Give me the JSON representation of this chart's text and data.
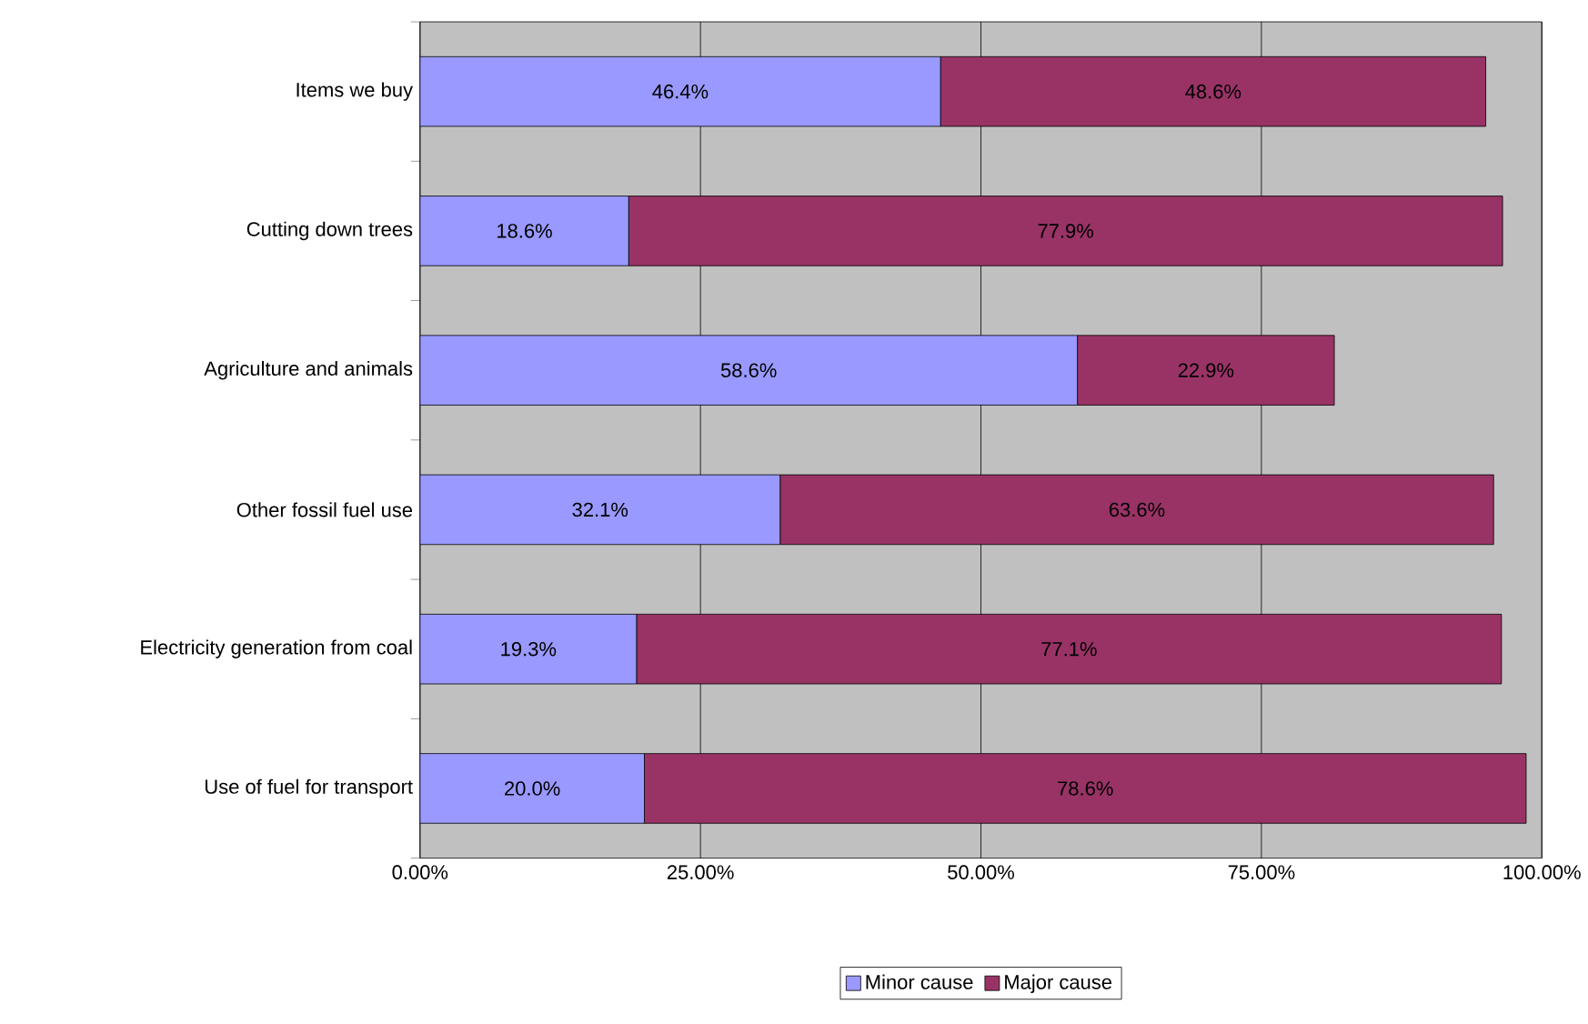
{
  "chart_data": {
    "type": "bar",
    "orientation": "horizontal",
    "stacked": true,
    "categories": [
      "Items we buy",
      "Cutting down trees",
      "Agriculture and animals",
      "Other fossil fuel use",
      "Electricity generation from coal",
      "Use of fuel for transport"
    ],
    "series": [
      {
        "name": "Minor cause",
        "color": "#9999ff",
        "values": [
          46.4,
          18.6,
          58.6,
          32.1,
          19.3,
          20.0
        ],
        "value_labels": [
          "46.4%",
          "18.6%",
          "58.6%",
          "32.1%",
          "19.3%",
          "20.0%"
        ]
      },
      {
        "name": "Major cause",
        "color": "#993366",
        "values": [
          48.6,
          77.9,
          22.9,
          63.6,
          77.1,
          78.6
        ],
        "value_labels": [
          "48.6%",
          "77.9%",
          "22.9%",
          "63.6%",
          "77.1%",
          "78.6%"
        ]
      }
    ],
    "xlim": [
      0,
      100
    ],
    "xticks": [
      {
        "value": 0,
        "label": "0.00%"
      },
      {
        "value": 25,
        "label": "25.00%"
      },
      {
        "value": 50,
        "label": "50.00%"
      },
      {
        "value": 75,
        "label": "75.00%"
      },
      {
        "value": 100,
        "label": "100.00%"
      }
    ],
    "grid": "x",
    "legend": "bottom"
  }
}
